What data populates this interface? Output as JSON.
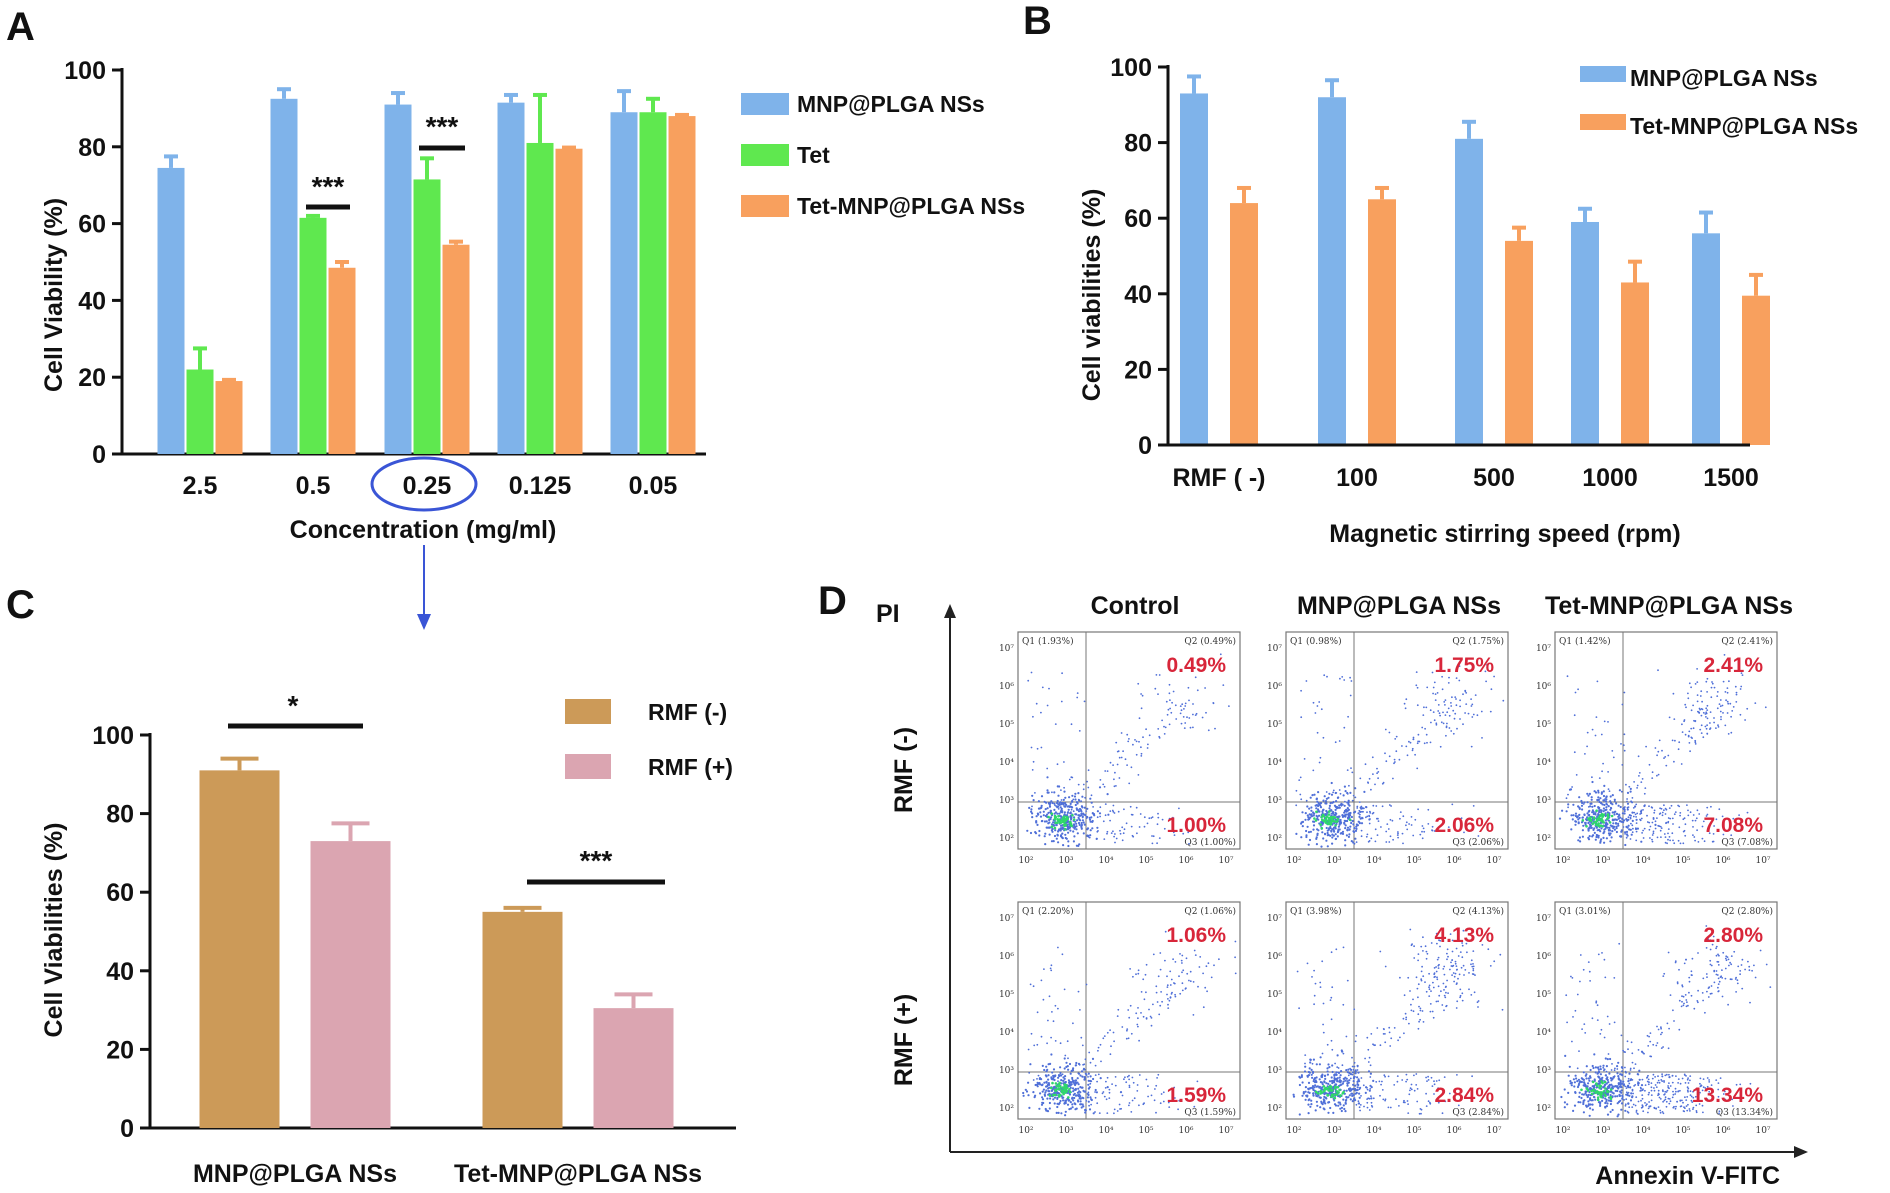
{
  "panel_labels": [
    "A",
    "B",
    "C",
    "D"
  ],
  "colors": {
    "blue": "#7fb3ea",
    "green": "#5fe84f",
    "orange": "#f8a05e",
    "gold": "#cc9a58",
    "pink": "#dba5b1",
    "circle": "#3a55d6",
    "flow_pct": "#d8263a",
    "flow_dots": "#4f6fd8"
  },
  "chart_data": [
    {
      "panel": "A",
      "type": "bar",
      "ylabel": "Cell Viability (%)",
      "xlabel": "Concentration  (mg/ml)",
      "ylim": [
        0,
        100
      ],
      "yticks": [
        "0",
        "20",
        "40",
        "60",
        "80",
        "100"
      ],
      "categories": [
        "2.5",
        "0.5",
        "0.25",
        "0.125",
        "0.05"
      ],
      "highlighted_category": "0.25",
      "series": [
        {
          "name": "MNP@PLGA NSs",
          "values": [
            74.5,
            92.5,
            91,
            91.5,
            89
          ],
          "errors": [
            3,
            2.5,
            3,
            2,
            5.5
          ]
        },
        {
          "name": "Tet",
          "values": [
            22,
            61.5,
            71.5,
            81,
            89
          ],
          "errors": [
            5.5,
            0.5,
            5.5,
            12.5,
            3.5
          ]
        },
        {
          "name": "Tet-MNP@PLGA NSs",
          "values": [
            19,
            48.5,
            54.5,
            79.5,
            88
          ],
          "errors": [
            0.3,
            1.5,
            0.8,
            0.3,
            0.3
          ]
        }
      ],
      "significance": [
        {
          "label": "***",
          "category": "0.5"
        },
        {
          "label": "***",
          "category": "0.25"
        }
      ],
      "legend": "right"
    },
    {
      "panel": "B",
      "type": "bar",
      "ylabel": "Cell viabilities (%)",
      "xlabel": "Magnetic stirring speed (rpm)",
      "ylim": [
        0,
        100
      ],
      "yticks": [
        "0",
        "20",
        "40",
        "60",
        "80",
        "100"
      ],
      "categories": [
        "RMF ( -)",
        "100",
        "500",
        "1000",
        "1500"
      ],
      "series": [
        {
          "name": "MNP@PLGA NSs",
          "values": [
            93,
            92,
            81,
            59,
            56
          ],
          "errors": [
            4.5,
            4.5,
            4.5,
            3.5,
            5.5
          ]
        },
        {
          "name": "Tet-MNP@PLGA NSs",
          "values": [
            64,
            65,
            54,
            43,
            39.5
          ],
          "errors": [
            4,
            3,
            3.5,
            5.5,
            5.5
          ]
        }
      ],
      "legend": "top-right"
    },
    {
      "panel": "C",
      "type": "bar",
      "ylabel": "Cell Viabilities (%)",
      "xlabel": "",
      "ylim": [
        0,
        100
      ],
      "yticks": [
        "0",
        "20",
        "40",
        "60",
        "80",
        "100"
      ],
      "categories": [
        "MNP@PLGA NSs",
        "Tet-MNP@PLGA NSs"
      ],
      "series": [
        {
          "name": "RMF (-)",
          "values": [
            91,
            55
          ],
          "errors": [
            3,
            1
          ]
        },
        {
          "name": "RMF (+)",
          "values": [
            73,
            30.5
          ],
          "errors": [
            4.5,
            3.5
          ]
        }
      ],
      "significance": [
        {
          "label": "*",
          "category": "MNP@PLGA NSs"
        },
        {
          "label": "***",
          "category": "Tet-MNP@PLGA NSs"
        }
      ],
      "legend": "top-right"
    },
    {
      "panel": "D",
      "type": "scatter",
      "subtype": "flow-cytometry-grid",
      "xlabel": "Annexin V-FITC",
      "ylabel": "PI",
      "columns": [
        "Control",
        "MNP@PLGA NSs",
        "Tet-MNP@PLGA NSs"
      ],
      "rows": [
        "RMF (-)",
        "RMF (+)"
      ],
      "axis_tick_labels": {
        "x": [
          "10²",
          "10³",
          "10⁴",
          "10⁵",
          "10⁶",
          "10⁷"
        ],
        "y": [
          "10²",
          "10³",
          "10⁴",
          "10⁵",
          "10⁶",
          "10⁷"
        ]
      },
      "plots": [
        {
          "row": "RMF (-)",
          "column": "Control",
          "q2_pct": "0.49%",
          "q3_pct": "1.00%",
          "q1_small": "Q1 (1.93%)",
          "q2_small": "Q2 (0.49%)",
          "q3_small": "Q3 (1.00%)"
        },
        {
          "row": "RMF (-)",
          "column": "MNP@PLGA NSs",
          "q2_pct": "1.75%",
          "q3_pct": "2.06%",
          "q1_small": "Q1 (0.98%)",
          "q2_small": "Q2 (1.75%)",
          "q3_small": "Q3 (2.06%)"
        },
        {
          "row": "RMF (-)",
          "column": "Tet-MNP@PLGA NSs",
          "q2_pct": "2.41%",
          "q3_pct": "7.08%",
          "q1_small": "Q1 (1.42%)",
          "q2_small": "Q2 (2.41%)",
          "q3_small": "Q3 (7.08%)"
        },
        {
          "row": "RMF (+)",
          "column": "Control",
          "q2_pct": "1.06%",
          "q3_pct": "1.59%",
          "q1_small": "Q1 (2.20%)",
          "q2_small": "Q2 (1.06%)",
          "q3_small": "Q3 (1.59%)"
        },
        {
          "row": "RMF (+)",
          "column": "MNP@PLGA NSs",
          "q2_pct": "4.13%",
          "q3_pct": "2.84%",
          "q1_small": "Q1 (3.98%)",
          "q2_small": "Q2 (4.13%)",
          "q3_small": "Q3 (2.84%)"
        },
        {
          "row": "RMF (+)",
          "column": "Tet-MNP@PLGA NSs",
          "q2_pct": "2.80%",
          "q3_pct": "13.34%",
          "q1_small": "Q1 (3.01%)",
          "q2_small": "Q2 (2.80%)",
          "q3_small": "Q3 (13.34%)"
        }
      ]
    }
  ]
}
